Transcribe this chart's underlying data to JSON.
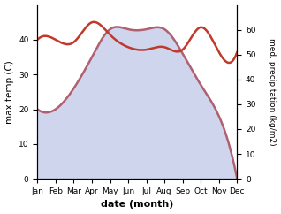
{
  "months": [
    "Jan",
    "Feb",
    "Mar",
    "Apr",
    "May",
    "Jun",
    "Jul",
    "Aug",
    "Sep",
    "Oct",
    "Nov",
    "Dec"
  ],
  "max_temp": [
    20,
    20,
    26,
    35,
    43,
    43,
    43,
    43,
    36,
    27,
    18,
    0
  ],
  "med_precip": [
    56,
    56,
    55,
    63,
    58,
    53,
    52,
    53,
    52,
    61,
    51,
    51
  ],
  "temp_color": "#b06070",
  "precip_color": "#c0392b",
  "fill_color": "#aab4e0",
  "fill_alpha": 0.55,
  "temp_ylim": [
    0,
    50
  ],
  "precip_ylim": [
    0,
    70
  ],
  "temp_yticks": [
    0,
    10,
    20,
    30,
    40
  ],
  "precip_yticks": [
    0,
    10,
    20,
    30,
    40,
    50,
    60
  ],
  "xlabel": "date (month)",
  "ylabel_left": "max temp (C)",
  "ylabel_right": "med. precipitation (kg/m2)",
  "background_color": "#ffffff",
  "line_width": 1.8
}
